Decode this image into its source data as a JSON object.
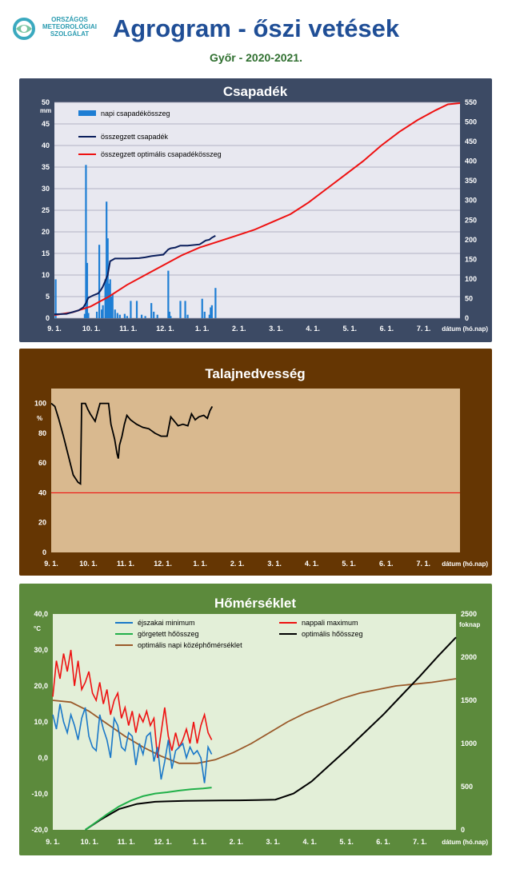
{
  "header": {
    "logo_text": [
      "ORSZÁGOS",
      "METEOROLÓGIAI",
      "SZOLGÁLAT"
    ],
    "title": "Agrogram - őszi vetések",
    "subtitle": "Győr - 2020-2021."
  },
  "colors": {
    "title": "#1f4e96",
    "subtitle": "#2f6f2f",
    "panel_precip": "#3c4a64",
    "panel_soil": "#653603",
    "panel_temp": "#5c8a3c",
    "plot_precip": "#e8e8f0",
    "plot_soil": "#d9b98f",
    "plot_temp": "#e3efd8",
    "daily_bar": "#1e7ed4",
    "cum_precip": "#0a1e5c",
    "opt_precip": "#ee1111",
    "min_temp": "#1a78c8",
    "max_temp": "#ee1111",
    "rolling_heat": "#22b04a",
    "opt_heat": "#000000",
    "opt_mean": "#9a5a2a"
  },
  "chart_data": [
    {
      "type": "bar",
      "title": "Csapadék",
      "ylabel": "mm",
      "xlabel": "dátum (hó.nap)",
      "x_ticks": [
        "9. 1.",
        "10. 1.",
        "11. 1.",
        "12. 1.",
        "1. 1.",
        "2. 1.",
        "3. 1.",
        "4. 1.",
        "5. 1.",
        "6. 1.",
        "7. 1."
      ],
      "y_ticks": [
        "0",
        "5",
        "10",
        "15",
        "20",
        "25",
        "30",
        "35",
        "40",
        "45",
        "50"
      ],
      "y2_ticks": [
        "0",
        "50",
        "100",
        "150",
        "200",
        "250",
        "300",
        "350",
        "400",
        "450",
        "500",
        "550"
      ],
      "ylim": [
        0,
        50
      ],
      "y2lim": [
        0,
        550
      ],
      "xlim_days": [
        0,
        335
      ],
      "legend": [
        "napi csapadékösszeg",
        "összegzett csapadék",
        "összegzett optimális csapadékösszeg"
      ],
      "daily_precip": {
        "day": [
          1,
          25,
          26,
          27,
          28,
          35,
          37,
          39,
          40,
          42,
          43,
          44,
          45,
          46,
          47,
          48,
          50,
          52,
          54,
          58,
          60,
          63,
          68,
          72,
          75,
          80,
          82,
          85,
          94,
          95,
          96,
          104,
          108,
          110,
          122,
          124,
          128,
          129,
          130,
          133
        ],
        "value": [
          9,
          1,
          35.5,
          12.8,
          1.2,
          1.5,
          17,
          2,
          3,
          9,
          27,
          18.5,
          8,
          9,
          5,
          5.5,
          2,
          1.2,
          0.8,
          1,
          0.5,
          4,
          4,
          0.8,
          0.5,
          3.5,
          1.5,
          0.8,
          11,
          1.5,
          0.5,
          4,
          4,
          0.8,
          4.5,
          1.5,
          0.8,
          2.5,
          3,
          7
        ]
      },
      "cumulative_precip": {
        "day": [
          0,
          10,
          20,
          24,
          26,
          28,
          32,
          36,
          38,
          40,
          42,
          44,
          46,
          50,
          60,
          70,
          75,
          80,
          90,
          94,
          96,
          100,
          104,
          110,
          120,
          125,
          128,
          130,
          133
        ],
        "value": [
          10,
          11,
          20,
          28,
          38,
          52,
          58,
          63,
          70,
          80,
          95,
          110,
          145,
          152,
          152,
          153,
          155,
          158,
          162,
          175,
          178,
          180,
          185,
          185,
          188,
          198,
          200,
          205,
          210
        ]
      },
      "optimal_cumulative_precip": {
        "day": [
          0,
          15,
          30,
          45,
          60,
          75,
          90,
          105,
          120,
          135,
          150,
          165,
          180,
          195,
          210,
          225,
          240,
          255,
          270,
          285,
          300,
          315,
          325,
          335
        ],
        "value": [
          8,
          15,
          30,
          55,
          85,
          110,
          135,
          160,
          180,
          195,
          210,
          225,
          245,
          265,
          295,
          330,
          365,
          400,
          440,
          475,
          505,
          530,
          545,
          548
        ]
      }
    },
    {
      "type": "line",
      "title": "Talajnedvesség",
      "ylabel": "%",
      "xlabel": "dátum (hó.nap)",
      "x_ticks": [
        "9. 1.",
        "10. 1.",
        "11. 1.",
        "12. 1.",
        "1. 1.",
        "2. 1.",
        "3. 1.",
        "4. 1.",
        "5. 1.",
        "6. 1.",
        "7. 1."
      ],
      "y_ticks": [
        "0",
        "20",
        "40",
        "60",
        "80",
        "100"
      ],
      "ylim": [
        0,
        110
      ],
      "reference_line": 40,
      "soil_moisture": {
        "day": [
          0,
          3,
          6,
          10,
          14,
          18,
          22,
          24,
          25,
          26,
          28,
          30,
          32,
          36,
          40,
          42,
          45,
          47,
          49,
          52,
          54,
          55,
          56,
          58,
          60,
          62,
          65,
          70,
          75,
          80,
          85,
          90,
          95,
          98,
          100,
          104,
          108,
          112,
          115,
          118,
          121,
          125,
          128,
          130,
          132
        ],
        "value": [
          100,
          98,
          90,
          78,
          65,
          52,
          47,
          46,
          100,
          100,
          100,
          96,
          93,
          88,
          100,
          100,
          100,
          100,
          86,
          76,
          66,
          63,
          72,
          78,
          86,
          92,
          89,
          86,
          84,
          83,
          80,
          78,
          78,
          91,
          89,
          85,
          86,
          85,
          93,
          89,
          91,
          92,
          90,
          95,
          98
        ]
      }
    },
    {
      "type": "line",
      "title": "Hőmérséklet",
      "ylabel": "°C",
      "y2label": "foknap",
      "xlabel": "dátum (hó.nap)",
      "x_ticks": [
        "9. 1.",
        "10. 1.",
        "11. 1.",
        "12. 1.",
        "1. 1.",
        "2. 1.",
        "3. 1.",
        "4. 1.",
        "5. 1.",
        "6. 1.",
        "7. 1."
      ],
      "y_ticks": [
        "-20,0",
        "-10,0",
        "0,0",
        "10,0",
        "20,0",
        "30,0",
        "40,0"
      ],
      "y2_ticks": [
        "0",
        "500",
        "1000",
        "1500",
        "2000",
        "2500"
      ],
      "ylim": [
        -20,
        40
      ],
      "y2lim": [
        0,
        2500
      ],
      "legend": [
        "éjszakai minimum",
        "nappali maximum",
        "görgetett hőösszeg",
        "optimális hőösszeg",
        "optimális napi középhőmérséklet"
      ],
      "night_min": {
        "day": [
          0,
          3,
          6,
          9,
          12,
          15,
          18,
          21,
          24,
          27,
          30,
          33,
          36,
          39,
          42,
          45,
          48,
          51,
          54,
          57,
          60,
          63,
          66,
          69,
          72,
          75,
          78,
          81,
          84,
          87,
          90,
          93,
          96,
          99,
          102,
          105,
          108,
          111,
          114,
          117,
          120,
          123,
          126,
          129,
          132
        ],
        "value": [
          12,
          8,
          15,
          10,
          7,
          12,
          9,
          5,
          11,
          14,
          6,
          3,
          2,
          12,
          8,
          5,
          0,
          11,
          9,
          3,
          2,
          7,
          6,
          -2,
          4,
          1,
          6,
          7,
          -1,
          3,
          -6,
          -1,
          5,
          -3,
          2,
          3,
          4,
          0,
          3,
          1,
          2,
          0,
          -7,
          3,
          1
        ]
      },
      "day_max": {
        "day": [
          0,
          3,
          6,
          9,
          12,
          15,
          18,
          21,
          24,
          27,
          30,
          33,
          36,
          39,
          42,
          45,
          48,
          51,
          54,
          57,
          60,
          63,
          66,
          69,
          72,
          75,
          78,
          81,
          84,
          87,
          90,
          93,
          96,
          99,
          102,
          105,
          108,
          111,
          114,
          117,
          120,
          123,
          126,
          129,
          132
        ],
        "value": [
          17,
          27,
          22,
          29,
          24,
          30,
          20,
          27,
          19,
          21,
          24,
          18,
          16,
          21,
          15,
          19,
          12,
          16,
          18,
          11,
          14,
          9,
          13,
          7,
          12,
          10,
          13,
          9,
          11,
          0,
          7,
          14,
          6,
          2,
          7,
          3,
          5,
          8,
          4,
          10,
          4,
          9,
          12,
          7,
          5
        ]
      },
      "rolling_heat_sum": {
        "day": [
          27,
          35,
          45,
          55,
          65,
          75,
          85,
          95,
          105,
          115,
          125,
          132
        ],
        "value": [
          0,
          80,
          180,
          270,
          340,
          390,
          420,
          435,
          455,
          470,
          480,
          490
        ]
      },
      "optimal_heat_sum": {
        "day": [
          27,
          40,
          55,
          70,
          85,
          95,
          110,
          125,
          140,
          155,
          170,
          185,
          200,
          215,
          230,
          245,
          260,
          275,
          290,
          305,
          320,
          335
        ],
        "value": [
          0,
          120,
          240,
          300,
          325,
          330,
          335,
          338,
          340,
          342,
          345,
          350,
          420,
          560,
          750,
          940,
          1140,
          1340,
          1560,
          1780,
          2010,
          2230
        ]
      },
      "optimal_mean_temp": {
        "day": [
          0,
          15,
          30,
          45,
          60,
          75,
          90,
          105,
          120,
          135,
          150,
          165,
          180,
          195,
          210,
          225,
          240,
          255,
          270,
          285,
          300,
          315,
          335
        ],
        "value": [
          16,
          15.5,
          13,
          9.5,
          6,
          3,
          0.5,
          -1.5,
          -1.5,
          -0.5,
          1.5,
          4,
          7,
          10,
          12.5,
          14.5,
          16.5,
          18,
          19,
          20,
          20.5,
          21,
          22
        ]
      }
    }
  ]
}
